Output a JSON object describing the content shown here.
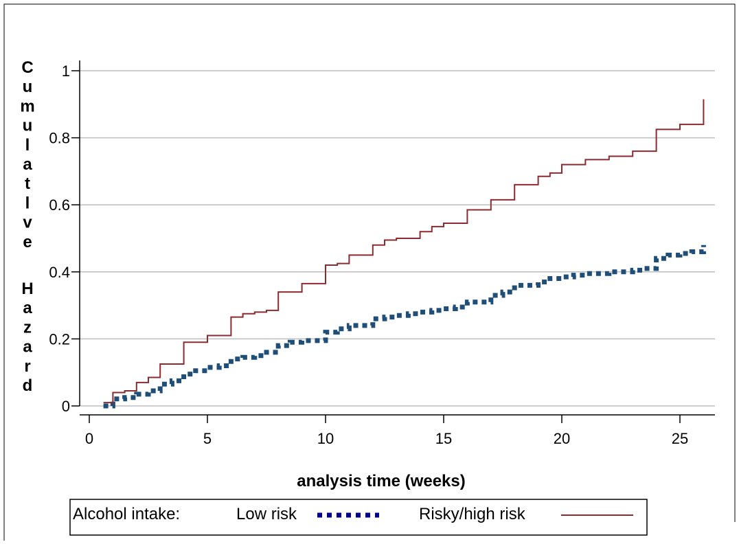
{
  "chart_data": {
    "type": "line",
    "title": "",
    "xlabel": "analysis time (weeks)",
    "ylabel": "Cumulatlve Hazard",
    "xlim": [
      0,
      26
    ],
    "ylim": [
      0,
      1
    ],
    "x_ticks": [
      "0",
      "5",
      "10",
      "15",
      "20",
      "25"
    ],
    "y_ticks": [
      "0",
      "0.2",
      "0.4",
      "0.6",
      "0.8",
      "1"
    ],
    "grid": "horizontal",
    "step": true,
    "legend": {
      "placement": "bottom",
      "title": "Alcohol intake:",
      "entries": [
        "Low risk",
        "Risky/high risk"
      ]
    },
    "series": [
      {
        "name": "Low risk",
        "color": "#1f4e79",
        "style": "dashed-thick",
        "x": [
          0.6,
          1.0,
          1.5,
          2.0,
          2.5,
          3.0,
          3.5,
          4.0,
          4.5,
          5.0,
          5.5,
          6.0,
          6.5,
          7.0,
          7.5,
          8.0,
          8.5,
          9.0,
          10.0,
          10.5,
          11.0,
          12.0,
          12.5,
          13.0,
          13.5,
          14.0,
          14.5,
          15.0,
          15.5,
          16.0,
          17.0,
          17.5,
          18.0,
          19.0,
          19.5,
          20.0,
          20.5,
          21.0,
          22.0,
          23.0,
          23.5,
          24.0,
          24.5,
          25.0,
          25.5,
          26.0
        ],
        "y": [
          0.0,
          0.021,
          0.025,
          0.035,
          0.045,
          0.065,
          0.075,
          0.095,
          0.105,
          0.115,
          0.12,
          0.14,
          0.145,
          0.15,
          0.16,
          0.18,
          0.19,
          0.195,
          0.22,
          0.23,
          0.24,
          0.26,
          0.265,
          0.27,
          0.275,
          0.28,
          0.285,
          0.29,
          0.295,
          0.31,
          0.33,
          0.34,
          0.36,
          0.37,
          0.38,
          0.385,
          0.39,
          0.395,
          0.4,
          0.405,
          0.41,
          0.44,
          0.45,
          0.455,
          0.46,
          0.48
        ]
      },
      {
        "name": "Risky/high risk",
        "color": "#8b2a2f",
        "style": "solid",
        "x": [
          0.6,
          1.0,
          1.5,
          2.0,
          2.5,
          3.0,
          4.0,
          5.0,
          6.0,
          6.5,
          7.0,
          7.5,
          8.0,
          9.0,
          10.0,
          10.5,
          11.0,
          12.0,
          12.5,
          13.0,
          14.0,
          14.5,
          15.0,
          16.0,
          17.0,
          18.0,
          19.0,
          19.5,
          20.0,
          21.0,
          22.0,
          23.0,
          24.0,
          25.0,
          26.0
        ],
        "y": [
          0.01,
          0.04,
          0.045,
          0.07,
          0.085,
          0.125,
          0.19,
          0.21,
          0.265,
          0.275,
          0.28,
          0.285,
          0.34,
          0.365,
          0.42,
          0.425,
          0.45,
          0.48,
          0.495,
          0.5,
          0.52,
          0.535,
          0.545,
          0.585,
          0.615,
          0.66,
          0.685,
          0.695,
          0.72,
          0.735,
          0.745,
          0.76,
          0.825,
          0.84,
          0.915
        ]
      }
    ]
  }
}
